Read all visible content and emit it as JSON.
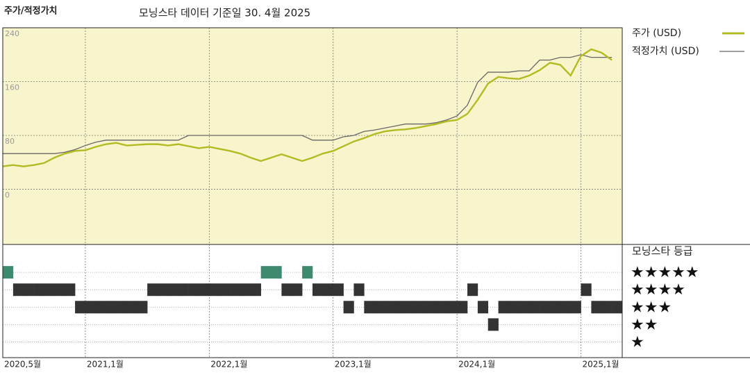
{
  "chart_data": [
    {
      "type": "line",
      "title": "주가/적정가치",
      "subtitle": "모닝스타 데이터 기준일 30. 4월 2025",
      "x": [
        "2020-05",
        "2020-06",
        "2020-07",
        "2020-08",
        "2020-09",
        "2020-10",
        "2020-11",
        "2020-12",
        "2021-01",
        "2021-02",
        "2021-03",
        "2021-04",
        "2021-05",
        "2021-06",
        "2021-07",
        "2021-08",
        "2021-09",
        "2021-10",
        "2021-11",
        "2021-12",
        "2022-01",
        "2022-02",
        "2022-03",
        "2022-04",
        "2022-05",
        "2022-06",
        "2022-07",
        "2022-08",
        "2022-09",
        "2022-10",
        "2022-11",
        "2022-12",
        "2023-01",
        "2023-02",
        "2023-03",
        "2023-04",
        "2023-05",
        "2023-06",
        "2023-07",
        "2023-08",
        "2023-09",
        "2023-10",
        "2023-11",
        "2023-12",
        "2024-01",
        "2024-02",
        "2024-03",
        "2024-04",
        "2024-05",
        "2024-06",
        "2024-07",
        "2024-08",
        "2024-09",
        "2024-10",
        "2024-11",
        "2024-12",
        "2025-01",
        "2025-02",
        "2025-03",
        "2025-04"
      ],
      "series": [
        {
          "name": "주가 (USD)",
          "color": "#b3bb22",
          "values": [
            34,
            36,
            34,
            36,
            39,
            47,
            53,
            57,
            58,
            63,
            67,
            69,
            65,
            66,
            67,
            67,
            65,
            67,
            64,
            61,
            63,
            60,
            57,
            53,
            47,
            42,
            47,
            52,
            47,
            42,
            47,
            53,
            57,
            64,
            71,
            76,
            82,
            86,
            88,
            89,
            91,
            94,
            97,
            101,
            103,
            112,
            133,
            157,
            167,
            165,
            164,
            169,
            177,
            188,
            185,
            169,
            198,
            208,
            203,
            192
          ]
        },
        {
          "name": "적정가치 (USD)",
          "color": "#666666",
          "values": [
            53,
            53,
            53,
            53,
            53,
            53,
            55,
            59,
            65,
            70,
            73,
            73,
            73,
            73,
            73,
            73,
            73,
            73,
            80,
            80,
            80,
            80,
            80,
            80,
            80,
            80,
            80,
            80,
            80,
            80,
            73,
            73,
            73,
            78,
            80,
            86,
            88,
            91,
            94,
            97,
            97,
            97,
            99,
            103,
            109,
            125,
            159,
            174,
            174,
            174,
            176,
            176,
            192,
            192,
            196,
            196,
            200,
            196,
            196,
            196
          ]
        }
      ],
      "ylim": [
        -82,
        240
      ],
      "yticks": [
        0,
        80,
        160,
        240
      ],
      "xticks": [
        {
          "value": "2020-05",
          "label": "2020,5월"
        },
        {
          "value": "2021-01",
          "label": "2021,1월"
        },
        {
          "value": "2022-01",
          "label": "2022,1월"
        },
        {
          "value": "2023-01",
          "label": "2023,1월"
        },
        {
          "value": "2024-01",
          "label": "2024,1월"
        },
        {
          "value": "2025-01",
          "label": "2025,1월"
        }
      ],
      "grid": true,
      "background": "#f8f4cc"
    },
    {
      "type": "rating",
      "title": "모닝스타 등급",
      "x": [
        "2020-05",
        "2020-06",
        "2020-07",
        "2020-08",
        "2020-09",
        "2020-10",
        "2020-11",
        "2020-12",
        "2021-01",
        "2021-02",
        "2021-03",
        "2021-04",
        "2021-05",
        "2021-06",
        "2021-07",
        "2021-08",
        "2021-09",
        "2021-10",
        "2021-11",
        "2021-12",
        "2022-01",
        "2022-02",
        "2022-03",
        "2022-04",
        "2022-05",
        "2022-06",
        "2022-07",
        "2022-08",
        "2022-09",
        "2022-10",
        "2022-11",
        "2022-12",
        "2023-01",
        "2023-02",
        "2023-03",
        "2023-04",
        "2023-05",
        "2023-06",
        "2023-07",
        "2023-08",
        "2023-09",
        "2023-10",
        "2023-11",
        "2023-12",
        "2024-01",
        "2024-02",
        "2024-03",
        "2024-04",
        "2024-05",
        "2024-06",
        "2024-07",
        "2024-08",
        "2024-09",
        "2024-10",
        "2024-11",
        "2024-12",
        "2025-01",
        "2025-02",
        "2025-03",
        "2025-04"
      ],
      "values": [
        5,
        4,
        4,
        4,
        4,
        4,
        4,
        3,
        3,
        3,
        3,
        3,
        3,
        3,
        4,
        4,
        4,
        4,
        4,
        4,
        4,
        4,
        4,
        4,
        4,
        5,
        5,
        4,
        4,
        5,
        4,
        4,
        4,
        3,
        4,
        3,
        3,
        3,
        3,
        3,
        3,
        3,
        3,
        3,
        3,
        4,
        3,
        2,
        3,
        3,
        3,
        3,
        3,
        3,
        3,
        3,
        4,
        3,
        3,
        3
      ],
      "ylim": [
        0.1,
        6.6
      ],
      "yticks": [
        {
          "value": 5,
          "label": "★★★★★"
        },
        {
          "value": 4,
          "label": "★★★★"
        },
        {
          "value": 3,
          "label": "★★★"
        },
        {
          "value": 2,
          "label": "★★"
        },
        {
          "value": 1,
          "label": "★"
        }
      ],
      "colors": [
        "#333333",
        "#333333",
        "#333333",
        "#333333",
        "#3e8a6e"
      ]
    }
  ]
}
